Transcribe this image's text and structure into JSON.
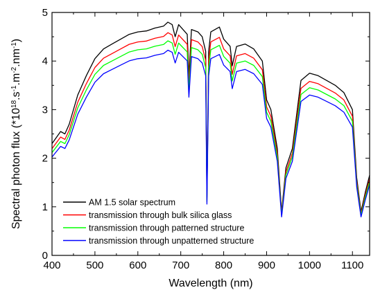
{
  "chart_data": {
    "type": "line",
    "xlabel": "Wavelength (nm)",
    "ylabel_parts": [
      "Spectral photon flux (*10",
      "18",
      ".s",
      "-1",
      ".m",
      "-2",
      ".nm",
      "-1",
      ")"
    ],
    "xlim": [
      400,
      1140
    ],
    "ylim": [
      0,
      5
    ],
    "x_ticks": [
      400,
      500,
      600,
      700,
      800,
      900,
      1000,
      1100
    ],
    "y_ticks": [
      0,
      1,
      2,
      3,
      4,
      5
    ],
    "legend_position": "bottom-left",
    "grid": false,
    "reference": {
      "x": [
        400,
        420,
        430,
        440,
        460,
        480,
        500,
        520,
        540,
        560,
        580,
        600,
        620,
        640,
        660,
        670,
        680,
        687,
        695,
        700,
        715,
        719,
        725,
        740,
        750,
        758,
        761,
        765,
        770,
        790,
        800,
        815,
        820,
        830,
        850,
        870,
        890,
        900,
        910,
        925,
        935,
        945,
        960,
        980,
        1000,
        1020,
        1040,
        1060,
        1080,
        1100,
        1110,
        1120,
        1130,
        1140
      ],
      "y": [
        2.3,
        2.55,
        2.5,
        2.7,
        3.3,
        3.7,
        4.05,
        4.25,
        4.35,
        4.45,
        4.55,
        4.6,
        4.62,
        4.68,
        4.72,
        4.8,
        4.75,
        4.5,
        4.75,
        4.7,
        4.55,
        3.7,
        4.65,
        4.6,
        4.5,
        4.2,
        1.2,
        4.2,
        4.6,
        4.7,
        4.45,
        4.3,
        3.9,
        4.3,
        4.35,
        4.25,
        4.0,
        3.2,
        3.0,
        2.2,
        0.9,
        1.8,
        2.2,
        3.6,
        3.75,
        3.7,
        3.6,
        3.5,
        3.35,
        3.0,
        1.6,
        0.9,
        1.3,
        1.65
      ]
    },
    "series": [
      {
        "name": "AM 1.5 solar spectrum",
        "color": "#000000",
        "scale": 1.0
      },
      {
        "name": "transmission through bulk silica glass",
        "color": "#ff0000",
        "scale": 0.955
      },
      {
        "name": "transmission through patterned structure",
        "color": "#00ff00",
        "scale": 0.92
      },
      {
        "name": "transmission through unpatterned structure",
        "color": "#0000ff",
        "scale": 0.88
      }
    ]
  }
}
